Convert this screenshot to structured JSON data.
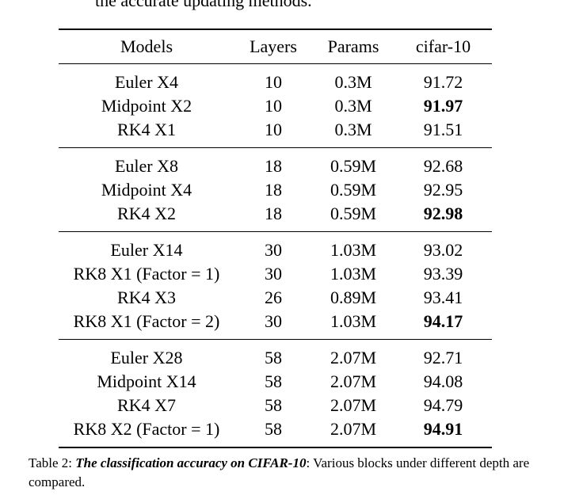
{
  "top_fragment": "the accurate updating methods.",
  "table": {
    "headers": [
      "Models",
      "Layers",
      "Params",
      "cifar-10"
    ],
    "groups": [
      [
        {
          "model": "Euler X4",
          "layers": "10",
          "params": "0.3M",
          "acc": "91.72"
        },
        {
          "model": "Midpoint X2",
          "layers": "10",
          "params": "0.3M",
          "acc": "91.97"
        },
        {
          "model": "RK4 X1",
          "layers": "10",
          "params": "0.3M",
          "acc": "91.51"
        }
      ],
      [
        {
          "model": "Euler X8",
          "layers": "18",
          "params": "0.59M",
          "acc": "92.68"
        },
        {
          "model": "Midpoint X4",
          "layers": "18",
          "params": "0.59M",
          "acc": "92.95"
        },
        {
          "model": "RK4 X2",
          "layers": "18",
          "params": "0.59M",
          "acc": "92.98"
        }
      ],
      [
        {
          "model": "Euler X14",
          "layers": "30",
          "params": "1.03M",
          "acc": "93.02"
        },
        {
          "model": "RK8 X1 (Factor = 1)",
          "layers": "30",
          "params": "1.03M",
          "acc": "93.39"
        },
        {
          "model": "RK4 X3",
          "layers": "26",
          "params": "0.89M",
          "acc": "93.41"
        },
        {
          "model": "RK8 X1 (Factor = 2)",
          "layers": "30",
          "params": "1.03M",
          "acc": "94.17"
        }
      ],
      [
        {
          "model": "Euler X28",
          "layers": "58",
          "params": "2.07M",
          "acc": "92.71"
        },
        {
          "model": "Midpoint X14",
          "layers": "58",
          "params": "2.07M",
          "acc": "94.08"
        },
        {
          "model": "RK4 X7",
          "layers": "58",
          "params": "2.07M",
          "acc": "94.79"
        },
        {
          "model": "RK8 X2 (Factor = 1)",
          "layers": "58",
          "params": "2.07M",
          "acc": "94.91"
        }
      ]
    ]
  },
  "caption": {
    "label": "Table 2: ",
    "lead": "The classification accuracy on CIFAR-10",
    "rest": ": Various blocks under different depth are compared."
  }
}
